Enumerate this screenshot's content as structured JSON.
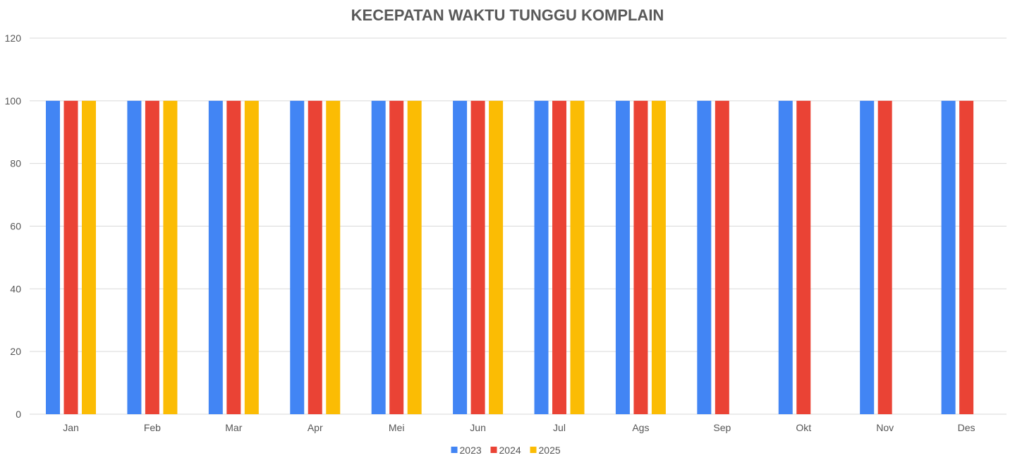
{
  "chart_data": {
    "type": "bar",
    "title": "KECEPATAN WAKTU TUNGGU KOMPLAIN",
    "xlabel": "",
    "ylabel": "",
    "ylim": [
      0,
      120
    ],
    "yticks": [
      0,
      20,
      40,
      60,
      80,
      100,
      120
    ],
    "grid": true,
    "legend_position": "bottom",
    "categories": [
      "Jan",
      "Feb",
      "Mar",
      "Apr",
      "Mei",
      "Jun",
      "Jul",
      "Ags",
      "Sep",
      "Okt",
      "Nov",
      "Des"
    ],
    "series": [
      {
        "name": "2023",
        "color": "#4285f4",
        "values": [
          100,
          100,
          100,
          100,
          100,
          100,
          100,
          100,
          100,
          100,
          100,
          100
        ]
      },
      {
        "name": "2024",
        "color": "#ea4335",
        "values": [
          100,
          100,
          100,
          100,
          100,
          100,
          100,
          100,
          100,
          100,
          100,
          100
        ]
      },
      {
        "name": "2025",
        "color": "#fbbc04",
        "values": [
          100,
          100,
          100,
          100,
          100,
          100,
          100,
          100,
          null,
          null,
          null,
          null
        ]
      }
    ]
  }
}
